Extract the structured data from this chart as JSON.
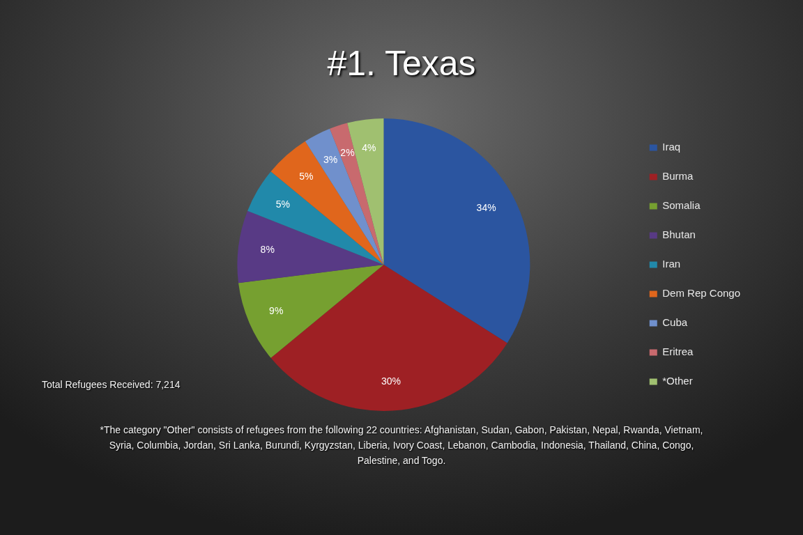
{
  "chart_data": {
    "type": "pie",
    "title": "#1. Texas",
    "categories": [
      "Iraq",
      "Burma",
      "Somalia",
      "Bhutan",
      "Iran",
      "Dem Rep Congo",
      "Cuba",
      "Eritrea",
      "*Other"
    ],
    "values": [
      34,
      30,
      9,
      8,
      5,
      5,
      3,
      2,
      4
    ],
    "colors": [
      "#2b55a0",
      "#9e2024",
      "#76a030",
      "#583a85",
      "#2189aa",
      "#e0661c",
      "#7090cc",
      "#c86a6e",
      "#a0c070"
    ],
    "value_labels": [
      "34%",
      "30%",
      "9%",
      "8%",
      "5%",
      "5%",
      "3%",
      "2%",
      "4%"
    ],
    "legend": "right",
    "annotations": [
      "Total Refugees Received: 7,214",
      "*The category \"Other\" consists of refugees from the following 22 countries: Afghanistan, Sudan, Gabon, Pakistan, Nepal, Rwanda, Vietnam, Syria, Columbia, Jordan, Sri Lanka, Burundi, Kyrgyzstan, Liberia, Ivory Coast, Lebanon, Cambodia, Indonesia, Thailand, China, Congo, Palestine, and Togo."
    ]
  }
}
